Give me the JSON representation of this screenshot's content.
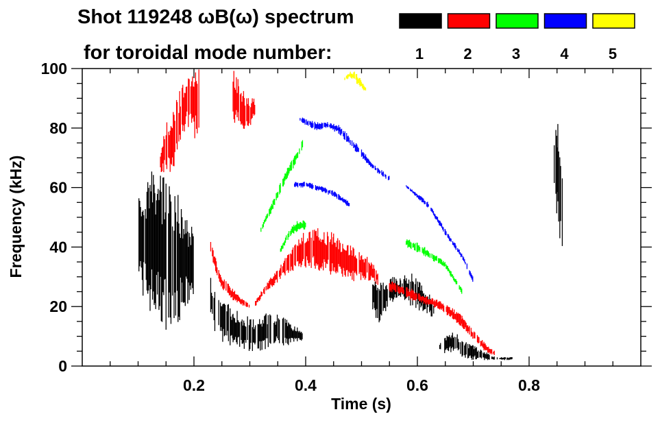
{
  "chart_data": {
    "type": "heatmap",
    "title_line1": "Shot 119248 ωB(ω) spectrum",
    "title_line2": "for toroidal mode number:",
    "xlabel": "Time (s)",
    "ylabel": "Frequency (kHz)",
    "xlim": [
      0.0,
      1.0
    ],
    "ylim": [
      0,
      100
    ],
    "xticks": [
      0.2,
      0.4,
      0.6,
      0.8
    ],
    "xtick_labels": [
      "0.2",
      "0.4",
      "0.6",
      "0.8"
    ],
    "yticks": [
      0,
      20,
      40,
      60,
      80,
      100
    ],
    "ytick_labels": [
      "0",
      "20",
      "40",
      "60",
      "80",
      "100"
    ],
    "x_minor_step": 0.05,
    "y_minor_step": 5,
    "legend": [
      {
        "label": "1",
        "color": "#000000"
      },
      {
        "label": "2",
        "color": "#ff0000"
      },
      {
        "label": "3",
        "color": "#00ff00"
      },
      {
        "label": "4",
        "color": "#0000ff"
      },
      {
        "label": "5",
        "color": "#ffff00"
      }
    ],
    "features": [
      {
        "mode": 1,
        "points": [
          [
            0.1,
            30,
            58
          ],
          [
            0.11,
            22,
            62
          ],
          [
            0.12,
            18,
            65
          ],
          [
            0.13,
            15,
            68
          ],
          [
            0.14,
            14,
            66
          ],
          [
            0.15,
            12,
            66
          ],
          [
            0.16,
            12,
            64
          ],
          [
            0.17,
            14,
            60
          ],
          [
            0.18,
            16,
            55
          ],
          [
            0.19,
            20,
            50
          ],
          [
            0.2,
            22,
            45
          ]
        ]
      },
      {
        "mode": 1,
        "points": [
          [
            0.23,
            16,
            30
          ],
          [
            0.24,
            10,
            24
          ],
          [
            0.25,
            8,
            22
          ],
          [
            0.27,
            6,
            20
          ],
          [
            0.29,
            5,
            17
          ],
          [
            0.31,
            5,
            16
          ],
          [
            0.33,
            5,
            18
          ],
          [
            0.35,
            6,
            18
          ],
          [
            0.37,
            7,
            15
          ],
          [
            0.385,
            8,
            13
          ],
          [
            0.395,
            8,
            12
          ]
        ]
      },
      {
        "mode": 1,
        "points": [
          [
            0.52,
            18,
            30
          ],
          [
            0.53,
            14,
            28
          ],
          [
            0.55,
            20,
            30
          ],
          [
            0.57,
            22,
            30
          ],
          [
            0.59,
            20,
            32
          ],
          [
            0.61,
            18,
            27
          ],
          [
            0.63,
            16,
            22
          ]
        ]
      },
      {
        "mode": 1,
        "points": [
          [
            0.64,
            5,
            8
          ],
          [
            0.65,
            4,
            10
          ],
          [
            0.66,
            4,
            12
          ],
          [
            0.67,
            4,
            11
          ],
          [
            0.68,
            3,
            9
          ],
          [
            0.7,
            2,
            7
          ],
          [
            0.72,
            2,
            5
          ],
          [
            0.74,
            2,
            3
          ],
          [
            0.77,
            2,
            3
          ]
        ]
      },
      {
        "mode": 1,
        "points": [
          [
            0.845,
            60,
            78
          ],
          [
            0.85,
            45,
            85
          ],
          [
            0.855,
            40,
            75
          ],
          [
            0.86,
            38,
            62
          ]
        ]
      },
      {
        "mode": 2,
        "points": [
          [
            0.14,
            65,
            72
          ],
          [
            0.15,
            65,
            82
          ],
          [
            0.16,
            62,
            85
          ],
          [
            0.17,
            70,
            90
          ],
          [
            0.18,
            78,
            96
          ],
          [
            0.19,
            80,
            100
          ],
          [
            0.2,
            75,
            100
          ],
          [
            0.21,
            80,
            100
          ]
        ]
      },
      {
        "mode": 2,
        "points": [
          [
            0.27,
            82,
            100
          ],
          [
            0.28,
            80,
            97
          ],
          [
            0.29,
            78,
            92
          ],
          [
            0.3,
            80,
            90
          ],
          [
            0.31,
            84,
            90
          ]
        ]
      },
      {
        "mode": 2,
        "points": [
          [
            0.23,
            38,
            42
          ],
          [
            0.24,
            30,
            36
          ],
          [
            0.25,
            26,
            30
          ],
          [
            0.27,
            22,
            26
          ],
          [
            0.29,
            20,
            22
          ],
          [
            0.3,
            19,
            21
          ]
        ]
      },
      {
        "mode": 2,
        "points": [
          [
            0.31,
            20,
            22
          ],
          [
            0.33,
            25,
            28
          ],
          [
            0.35,
            28,
            33
          ],
          [
            0.37,
            31,
            38
          ],
          [
            0.39,
            33,
            44
          ],
          [
            0.41,
            32,
            47
          ],
          [
            0.43,
            32,
            46
          ],
          [
            0.45,
            30,
            45
          ],
          [
            0.47,
            29,
            42
          ],
          [
            0.49,
            28,
            40
          ],
          [
            0.51,
            29,
            37
          ],
          [
            0.53,
            27,
            32
          ]
        ]
      },
      {
        "mode": 2,
        "points": [
          [
            0.55,
            25,
            29
          ],
          [
            0.57,
            24,
            27
          ],
          [
            0.59,
            22,
            26
          ],
          [
            0.61,
            21,
            24
          ],
          [
            0.64,
            19,
            22
          ],
          [
            0.66,
            16,
            20
          ],
          [
            0.68,
            13,
            17
          ],
          [
            0.7,
            9,
            12
          ],
          [
            0.72,
            5,
            8
          ],
          [
            0.74,
            3,
            5
          ]
        ]
      },
      {
        "mode": 3,
        "points": [
          [
            0.32,
            45,
            47
          ],
          [
            0.34,
            52,
            55
          ],
          [
            0.36,
            60,
            64
          ],
          [
            0.38,
            67,
            71
          ],
          [
            0.39,
            71,
            74
          ],
          [
            0.395,
            73,
            77
          ]
        ]
      },
      {
        "mode": 3,
        "points": [
          [
            0.355,
            38,
            40
          ],
          [
            0.37,
            43,
            46
          ],
          [
            0.385,
            45,
            49
          ],
          [
            0.4,
            46,
            49
          ]
        ]
      },
      {
        "mode": 3,
        "points": [
          [
            0.58,
            40,
            43
          ],
          [
            0.6,
            38,
            42
          ],
          [
            0.62,
            36,
            39
          ],
          [
            0.65,
            33,
            35
          ],
          [
            0.68,
            24,
            26
          ]
        ]
      },
      {
        "mode": 4,
        "points": [
          [
            0.39,
            82,
            84
          ],
          [
            0.4,
            81,
            83
          ],
          [
            0.42,
            79,
            82
          ],
          [
            0.44,
            80,
            82
          ],
          [
            0.46,
            78,
            81
          ],
          [
            0.48,
            74,
            77
          ],
          [
            0.5,
            70,
            73
          ],
          [
            0.52,
            66,
            68
          ],
          [
            0.55,
            62,
            64
          ]
        ]
      },
      {
        "mode": 4,
        "points": [
          [
            0.38,
            60,
            62
          ],
          [
            0.4,
            60,
            62
          ],
          [
            0.42,
            59,
            61
          ],
          [
            0.45,
            57,
            59
          ],
          [
            0.48,
            53,
            55
          ]
        ]
      },
      {
        "mode": 4,
        "points": [
          [
            0.58,
            60,
            61
          ],
          [
            0.62,
            53,
            55
          ],
          [
            0.65,
            44,
            46
          ],
          [
            0.68,
            36,
            38
          ],
          [
            0.7,
            28,
            30
          ]
        ]
      },
      {
        "mode": 5,
        "points": [
          [
            0.47,
            96,
            97
          ],
          [
            0.48,
            97,
            99
          ],
          [
            0.49,
            95,
            99
          ],
          [
            0.5,
            93,
            96
          ],
          [
            0.51,
            92,
            93
          ]
        ]
      }
    ]
  }
}
